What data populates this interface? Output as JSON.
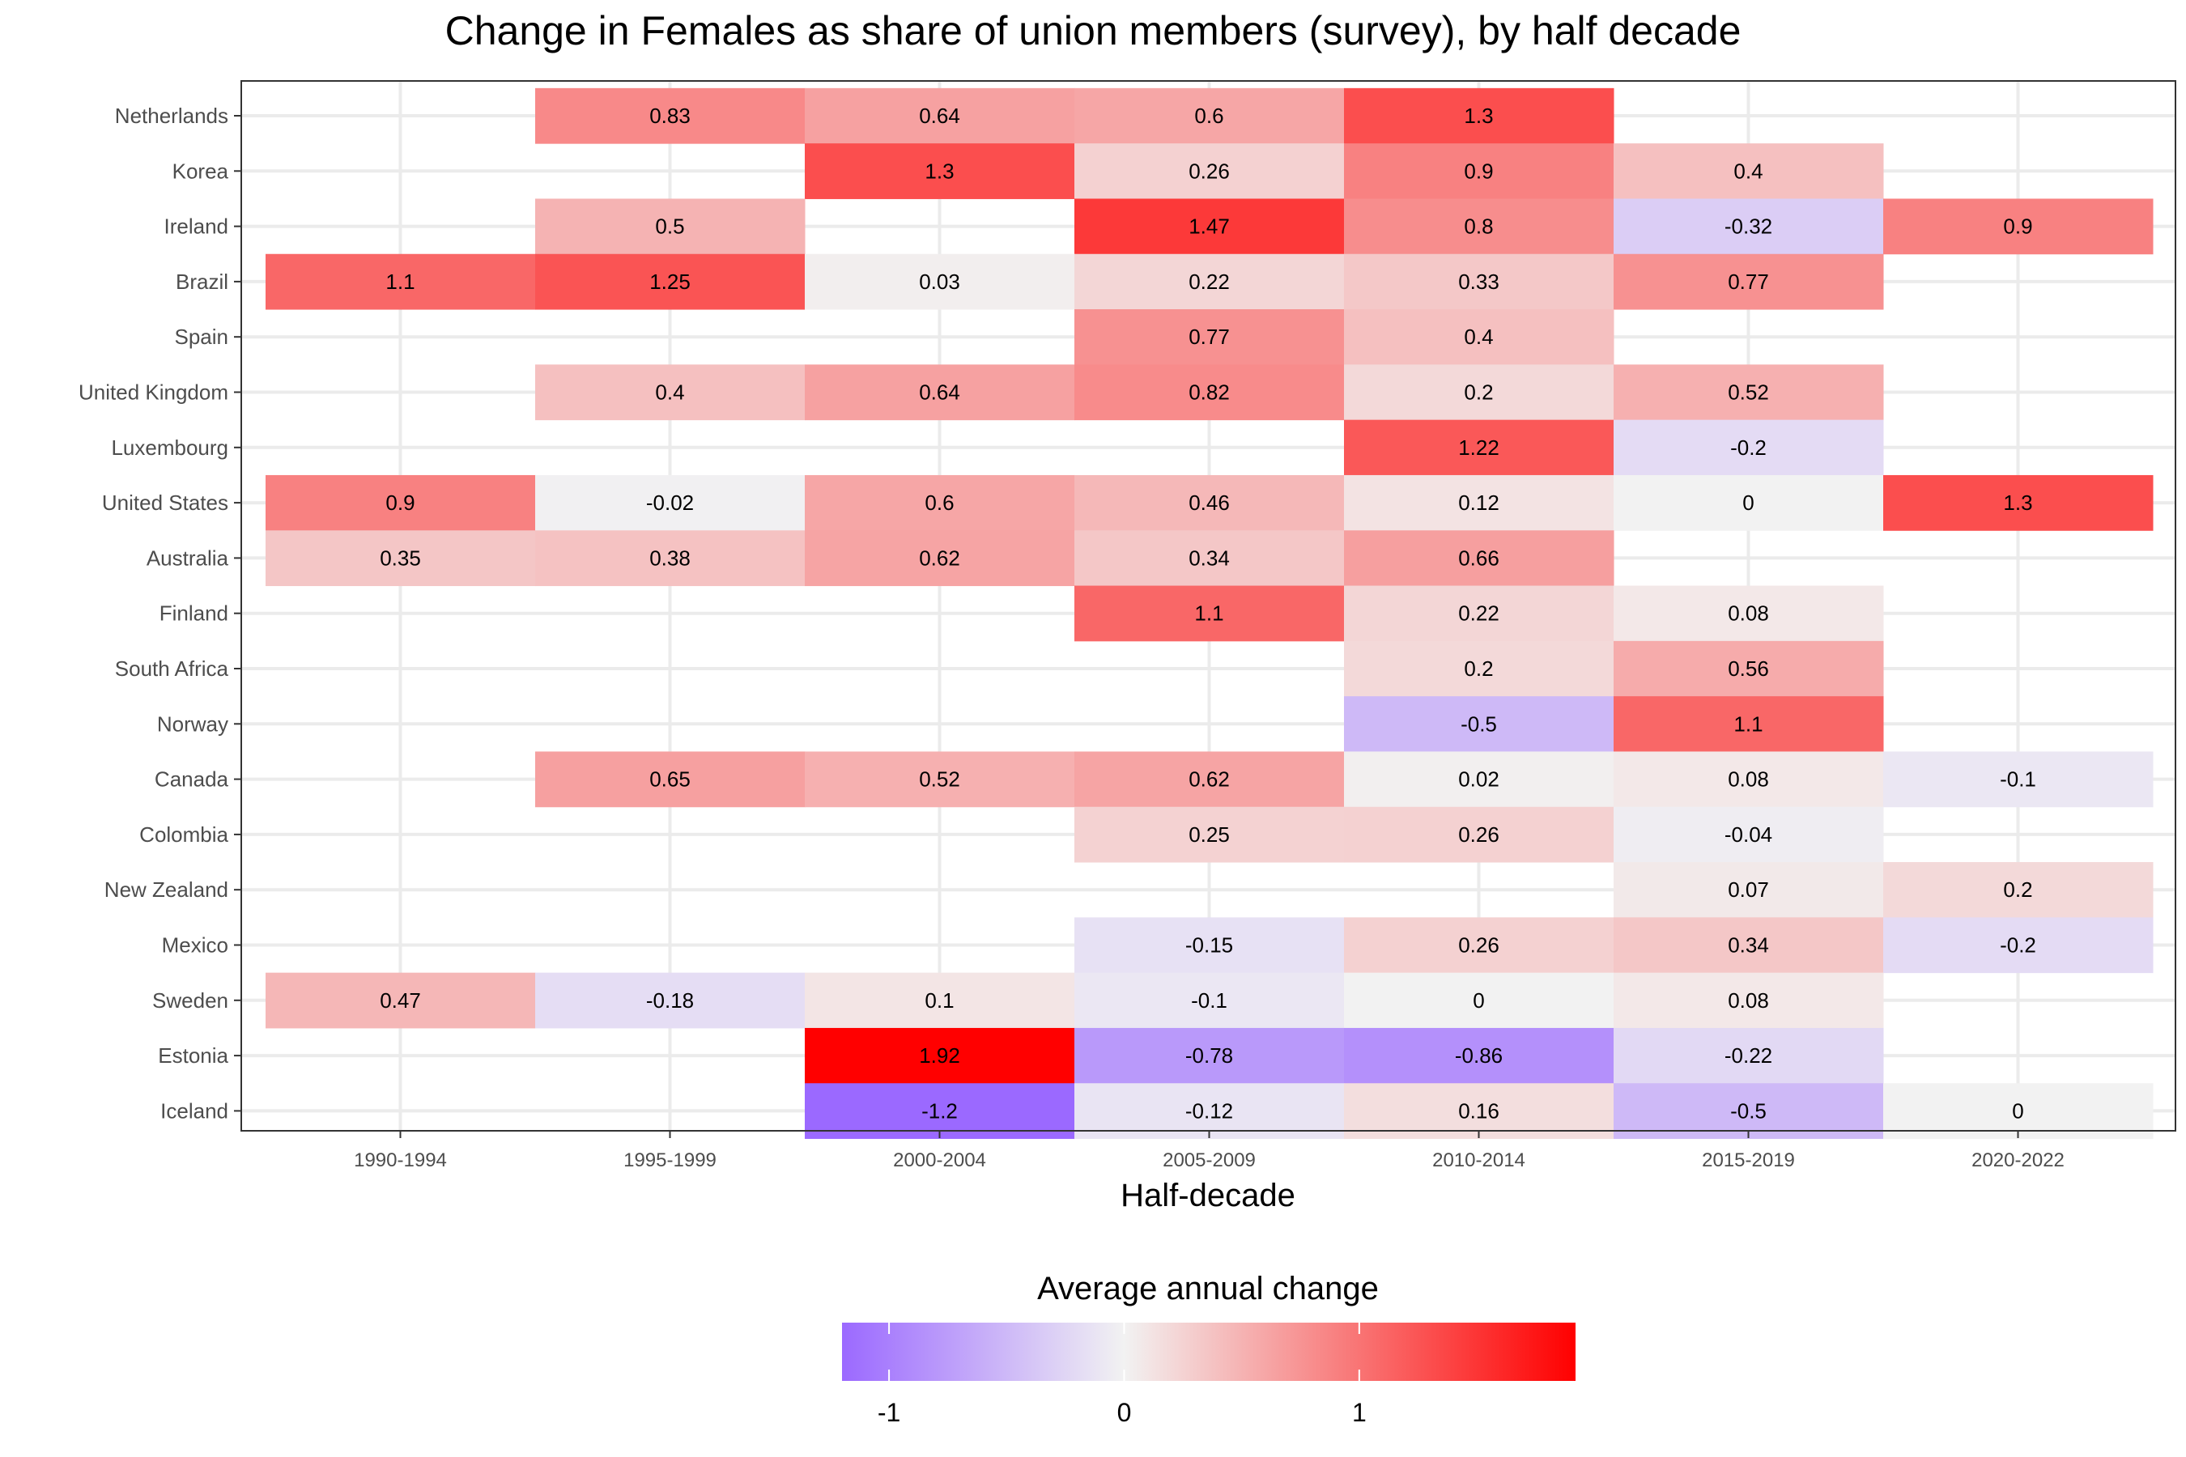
{
  "chart_data": {
    "type": "heatmap",
    "title": "Change in Females as share of union members (survey), by half decade",
    "xlabel": "Half-decade",
    "ylabel": "",
    "x": [
      "1990-1994",
      "1995-1999",
      "2000-2004",
      "2005-2009",
      "2010-2014",
      "2015-2019",
      "2020-2022"
    ],
    "y": [
      "Netherlands",
      "Korea",
      "Ireland",
      "Brazil",
      "Spain",
      "United Kingdom",
      "Luxembourg",
      "United States",
      "Australia",
      "Finland",
      "South Africa",
      "Norway",
      "Canada",
      "Colombia",
      "New Zealand",
      "Mexico",
      "Sweden",
      "Estonia",
      "Iceland"
    ],
    "cells": [
      {
        "row": "Netherlands",
        "col": "1995-1999",
        "value": 0.83,
        "label": "0.83"
      },
      {
        "row": "Netherlands",
        "col": "2000-2004",
        "value": 0.64,
        "label": "0.64"
      },
      {
        "row": "Netherlands",
        "col": "2005-2009",
        "value": 0.6,
        "label": "0.6"
      },
      {
        "row": "Netherlands",
        "col": "2010-2014",
        "value": 1.3,
        "label": "1.3"
      },
      {
        "row": "Korea",
        "col": "2000-2004",
        "value": 1.3,
        "label": "1.3"
      },
      {
        "row": "Korea",
        "col": "2005-2009",
        "value": 0.26,
        "label": "0.26"
      },
      {
        "row": "Korea",
        "col": "2010-2014",
        "value": 0.9,
        "label": "0.9"
      },
      {
        "row": "Korea",
        "col": "2015-2019",
        "value": 0.4,
        "label": "0.4"
      },
      {
        "row": "Ireland",
        "col": "1995-1999",
        "value": 0.5,
        "label": "0.5"
      },
      {
        "row": "Ireland",
        "col": "2005-2009",
        "value": 1.47,
        "label": "1.47"
      },
      {
        "row": "Ireland",
        "col": "2010-2014",
        "value": 0.8,
        "label": "0.8"
      },
      {
        "row": "Ireland",
        "col": "2015-2019",
        "value": -0.32,
        "label": "-0.32"
      },
      {
        "row": "Ireland",
        "col": "2020-2022",
        "value": 0.9,
        "label": "0.9"
      },
      {
        "row": "Brazil",
        "col": "1990-1994",
        "value": 1.1,
        "label": "1.1"
      },
      {
        "row": "Brazil",
        "col": "1995-1999",
        "value": 1.25,
        "label": "1.25"
      },
      {
        "row": "Brazil",
        "col": "2000-2004",
        "value": 0.03,
        "label": "0.03"
      },
      {
        "row": "Brazil",
        "col": "2005-2009",
        "value": 0.22,
        "label": "0.22"
      },
      {
        "row": "Brazil",
        "col": "2010-2014",
        "value": 0.33,
        "label": "0.33"
      },
      {
        "row": "Brazil",
        "col": "2015-2019",
        "value": 0.77,
        "label": "0.77"
      },
      {
        "row": "Spain",
        "col": "2005-2009",
        "value": 0.77,
        "label": "0.77"
      },
      {
        "row": "Spain",
        "col": "2010-2014",
        "value": 0.4,
        "label": "0.4"
      },
      {
        "row": "United Kingdom",
        "col": "1995-1999",
        "value": 0.4,
        "label": "0.4"
      },
      {
        "row": "United Kingdom",
        "col": "2000-2004",
        "value": 0.64,
        "label": "0.64"
      },
      {
        "row": "United Kingdom",
        "col": "2005-2009",
        "value": 0.82,
        "label": "0.82"
      },
      {
        "row": "United Kingdom",
        "col": "2010-2014",
        "value": 0.2,
        "label": "0.2"
      },
      {
        "row": "United Kingdom",
        "col": "2015-2019",
        "value": 0.52,
        "label": "0.52"
      },
      {
        "row": "Luxembourg",
        "col": "2010-2014",
        "value": 1.22,
        "label": "1.22"
      },
      {
        "row": "Luxembourg",
        "col": "2015-2019",
        "value": -0.2,
        "label": "-0.2"
      },
      {
        "row": "United States",
        "col": "1990-1994",
        "value": 0.9,
        "label": "0.9"
      },
      {
        "row": "United States",
        "col": "1995-1999",
        "value": -0.02,
        "label": "-0.02"
      },
      {
        "row": "United States",
        "col": "2000-2004",
        "value": 0.6,
        "label": "0.6"
      },
      {
        "row": "United States",
        "col": "2005-2009",
        "value": 0.46,
        "label": "0.46"
      },
      {
        "row": "United States",
        "col": "2010-2014",
        "value": 0.12,
        "label": "0.12"
      },
      {
        "row": "United States",
        "col": "2015-2019",
        "value": 0,
        "label": "0"
      },
      {
        "row": "United States",
        "col": "2020-2022",
        "value": 1.3,
        "label": "1.3"
      },
      {
        "row": "Australia",
        "col": "1990-1994",
        "value": 0.35,
        "label": "0.35"
      },
      {
        "row": "Australia",
        "col": "1995-1999",
        "value": 0.38,
        "label": "0.38"
      },
      {
        "row": "Australia",
        "col": "2000-2004",
        "value": 0.62,
        "label": "0.62"
      },
      {
        "row": "Australia",
        "col": "2005-2009",
        "value": 0.34,
        "label": "0.34"
      },
      {
        "row": "Australia",
        "col": "2010-2014",
        "value": 0.66,
        "label": "0.66"
      },
      {
        "row": "Finland",
        "col": "2005-2009",
        "value": 1.1,
        "label": "1.1"
      },
      {
        "row": "Finland",
        "col": "2010-2014",
        "value": 0.22,
        "label": "0.22"
      },
      {
        "row": "Finland",
        "col": "2015-2019",
        "value": 0.08,
        "label": "0.08"
      },
      {
        "row": "South Africa",
        "col": "2010-2014",
        "value": 0.2,
        "label": "0.2"
      },
      {
        "row": "South Africa",
        "col": "2015-2019",
        "value": 0.56,
        "label": "0.56"
      },
      {
        "row": "Norway",
        "col": "2010-2014",
        "value": -0.5,
        "label": "-0.5"
      },
      {
        "row": "Norway",
        "col": "2015-2019",
        "value": 1.1,
        "label": "1.1"
      },
      {
        "row": "Canada",
        "col": "1995-1999",
        "value": 0.65,
        "label": "0.65"
      },
      {
        "row": "Canada",
        "col": "2000-2004",
        "value": 0.52,
        "label": "0.52"
      },
      {
        "row": "Canada",
        "col": "2005-2009",
        "value": 0.62,
        "label": "0.62"
      },
      {
        "row": "Canada",
        "col": "2010-2014",
        "value": 0.02,
        "label": "0.02"
      },
      {
        "row": "Canada",
        "col": "2015-2019",
        "value": 0.08,
        "label": "0.08"
      },
      {
        "row": "Canada",
        "col": "2020-2022",
        "value": -0.1,
        "label": "-0.1"
      },
      {
        "row": "Colombia",
        "col": "2005-2009",
        "value": 0.25,
        "label": "0.25"
      },
      {
        "row": "Colombia",
        "col": "2010-2014",
        "value": 0.26,
        "label": "0.26"
      },
      {
        "row": "Colombia",
        "col": "2015-2019",
        "value": -0.04,
        "label": "-0.04"
      },
      {
        "row": "New Zealand",
        "col": "2015-2019",
        "value": 0.07,
        "label": "0.07"
      },
      {
        "row": "New Zealand",
        "col": "2020-2022",
        "value": 0.2,
        "label": "0.2"
      },
      {
        "row": "Mexico",
        "col": "2005-2009",
        "value": -0.15,
        "label": "-0.15"
      },
      {
        "row": "Mexico",
        "col": "2010-2014",
        "value": 0.26,
        "label": "0.26"
      },
      {
        "row": "Mexico",
        "col": "2015-2019",
        "value": 0.34,
        "label": "0.34"
      },
      {
        "row": "Mexico",
        "col": "2020-2022",
        "value": -0.2,
        "label": "-0.2"
      },
      {
        "row": "Sweden",
        "col": "1990-1994",
        "value": 0.47,
        "label": "0.47"
      },
      {
        "row": "Sweden",
        "col": "1995-1999",
        "value": -0.18,
        "label": "-0.18"
      },
      {
        "row": "Sweden",
        "col": "2000-2004",
        "value": 0.1,
        "label": "0.1"
      },
      {
        "row": "Sweden",
        "col": "2005-2009",
        "value": -0.1,
        "label": "-0.1"
      },
      {
        "row": "Sweden",
        "col": "2010-2014",
        "value": 0,
        "label": "0"
      },
      {
        "row": "Sweden",
        "col": "2015-2019",
        "value": 0.08,
        "label": "0.08"
      },
      {
        "row": "Estonia",
        "col": "2000-2004",
        "value": 1.92,
        "label": "1.92"
      },
      {
        "row": "Estonia",
        "col": "2005-2009",
        "value": -0.78,
        "label": "-0.78"
      },
      {
        "row": "Estonia",
        "col": "2010-2014",
        "value": -0.86,
        "label": "-0.86"
      },
      {
        "row": "Estonia",
        "col": "2015-2019",
        "value": -0.22,
        "label": "-0.22"
      },
      {
        "row": "Iceland",
        "col": "2000-2004",
        "value": -1.2,
        "label": "-1.2"
      },
      {
        "row": "Iceland",
        "col": "2005-2009",
        "value": -0.12,
        "label": "-0.12"
      },
      {
        "row": "Iceland",
        "col": "2010-2014",
        "value": 0.16,
        "label": "0.16"
      },
      {
        "row": "Iceland",
        "col": "2015-2019",
        "value": -0.5,
        "label": "-0.5"
      },
      {
        "row": "Iceland",
        "col": "2020-2022",
        "value": 0,
        "label": "0"
      }
    ],
    "color_scale": {
      "title": "Average annual change",
      "min": -1.2,
      "max": 1.92,
      "low_color": "#9b69ff",
      "mid_color": "#f2f2f2",
      "high_color": "#ff0000",
      "ticks": [
        -1,
        0,
        1
      ],
      "tick_labels": [
        "-1",
        "0",
        "1"
      ]
    },
    "grid": true,
    "legend_position": "bottom"
  }
}
